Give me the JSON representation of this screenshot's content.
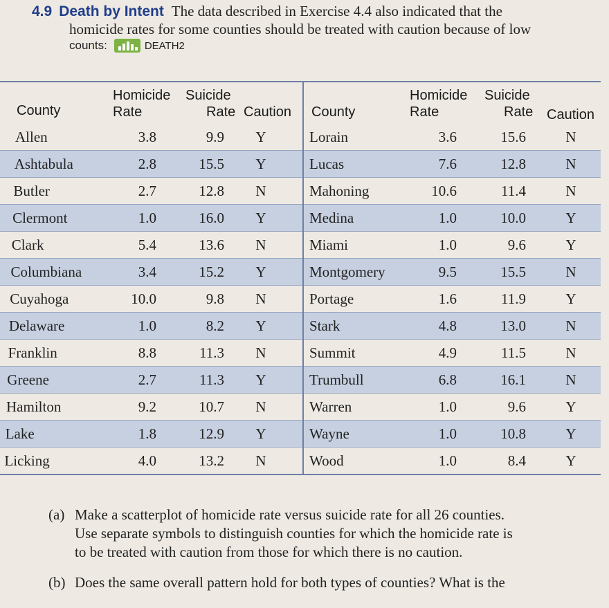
{
  "problem": {
    "number": "4.9",
    "title": "Death by Intent",
    "text_line1": "The data described in Exercise 4.4 also indicated that the",
    "text_line2": "homicide rates for some counties should be treated with caution because of low",
    "counts_label": "counts:",
    "dataset_icon": "bar-chart-data-icon",
    "dataset_name": "DEATH2"
  },
  "table": {
    "headers": {
      "county": "County",
      "homicide_top": "Homicide",
      "homicide_bottom": "Rate",
      "suicide_top": "Suicide",
      "suicide_bottom": "Rate",
      "caution": "Caution"
    },
    "left_rows": [
      {
        "county": "Allen",
        "homicide": "3.8",
        "suicide": "9.9",
        "caution": "Y"
      },
      {
        "county": "Ashtabula",
        "homicide": "2.8",
        "suicide": "15.5",
        "caution": "Y"
      },
      {
        "county": "Butler",
        "homicide": "2.7",
        "suicide": "12.8",
        "caution": "N"
      },
      {
        "county": "Clermont",
        "homicide": "1.0",
        "suicide": "16.0",
        "caution": "Y"
      },
      {
        "county": "Clark",
        "homicide": "5.4",
        "suicide": "13.6",
        "caution": "N"
      },
      {
        "county": "Columbiana",
        "homicide": "3.4",
        "suicide": "15.2",
        "caution": "Y"
      },
      {
        "county": "Cuyahoga",
        "homicide": "10.0",
        "suicide": "9.8",
        "caution": "N"
      },
      {
        "county": "Delaware",
        "homicide": "1.0",
        "suicide": "8.2",
        "caution": "Y"
      },
      {
        "county": "Franklin",
        "homicide": "8.8",
        "suicide": "11.3",
        "caution": "N"
      },
      {
        "county": "Greene",
        "homicide": "2.7",
        "suicide": "11.3",
        "caution": "Y"
      },
      {
        "county": "Hamilton",
        "homicide": "9.2",
        "suicide": "10.7",
        "caution": "N"
      },
      {
        "county": "Lake",
        "homicide": "1.8",
        "suicide": "12.9",
        "caution": "Y"
      },
      {
        "county": "Licking",
        "homicide": "4.0",
        "suicide": "13.2",
        "caution": "N"
      }
    ],
    "right_rows": [
      {
        "county": "Lorain",
        "homicide": "3.6",
        "suicide": "15.6",
        "caution": "N"
      },
      {
        "county": "Lucas",
        "homicide": "7.6",
        "suicide": "12.8",
        "caution": "N"
      },
      {
        "county": "Mahoning",
        "homicide": "10.6",
        "suicide": "11.4",
        "caution": "N"
      },
      {
        "county": "Medina",
        "homicide": "1.0",
        "suicide": "10.0",
        "caution": "Y"
      },
      {
        "county": "Miami",
        "homicide": "1.0",
        "suicide": "9.6",
        "caution": "Y"
      },
      {
        "county": "Montgomery",
        "homicide": "9.5",
        "suicide": "15.5",
        "caution": "N"
      },
      {
        "county": "Portage",
        "homicide": "1.6",
        "suicide": "11.9",
        "caution": "Y"
      },
      {
        "county": "Stark",
        "homicide": "4.8",
        "suicide": "13.0",
        "caution": "N"
      },
      {
        "county": "Summit",
        "homicide": "4.9",
        "suicide": "11.5",
        "caution": "N"
      },
      {
        "county": "Trumbull",
        "homicide": "6.8",
        "suicide": "16.1",
        "caution": "N"
      },
      {
        "county": "Warren",
        "homicide": "1.0",
        "suicide": "9.6",
        "caution": "Y"
      },
      {
        "county": "Wayne",
        "homicide": "1.0",
        "suicide": "10.8",
        "caution": "Y"
      },
      {
        "county": "Wood",
        "homicide": "1.0",
        "suicide": "8.4",
        "caution": "Y"
      }
    ]
  },
  "questions": {
    "a_label": "(a)",
    "a_line1": "Make a scatterplot of homicide rate versus suicide rate for all 26 counties.",
    "a_line2": "Use separate symbols to distinguish counties for which the homicide rate is",
    "a_line3": "to be treated with caution from those for which there is no caution.",
    "b_label": "(b)",
    "b_line1": "Does the same overall pattern hold for both types of counties? What is the"
  }
}
